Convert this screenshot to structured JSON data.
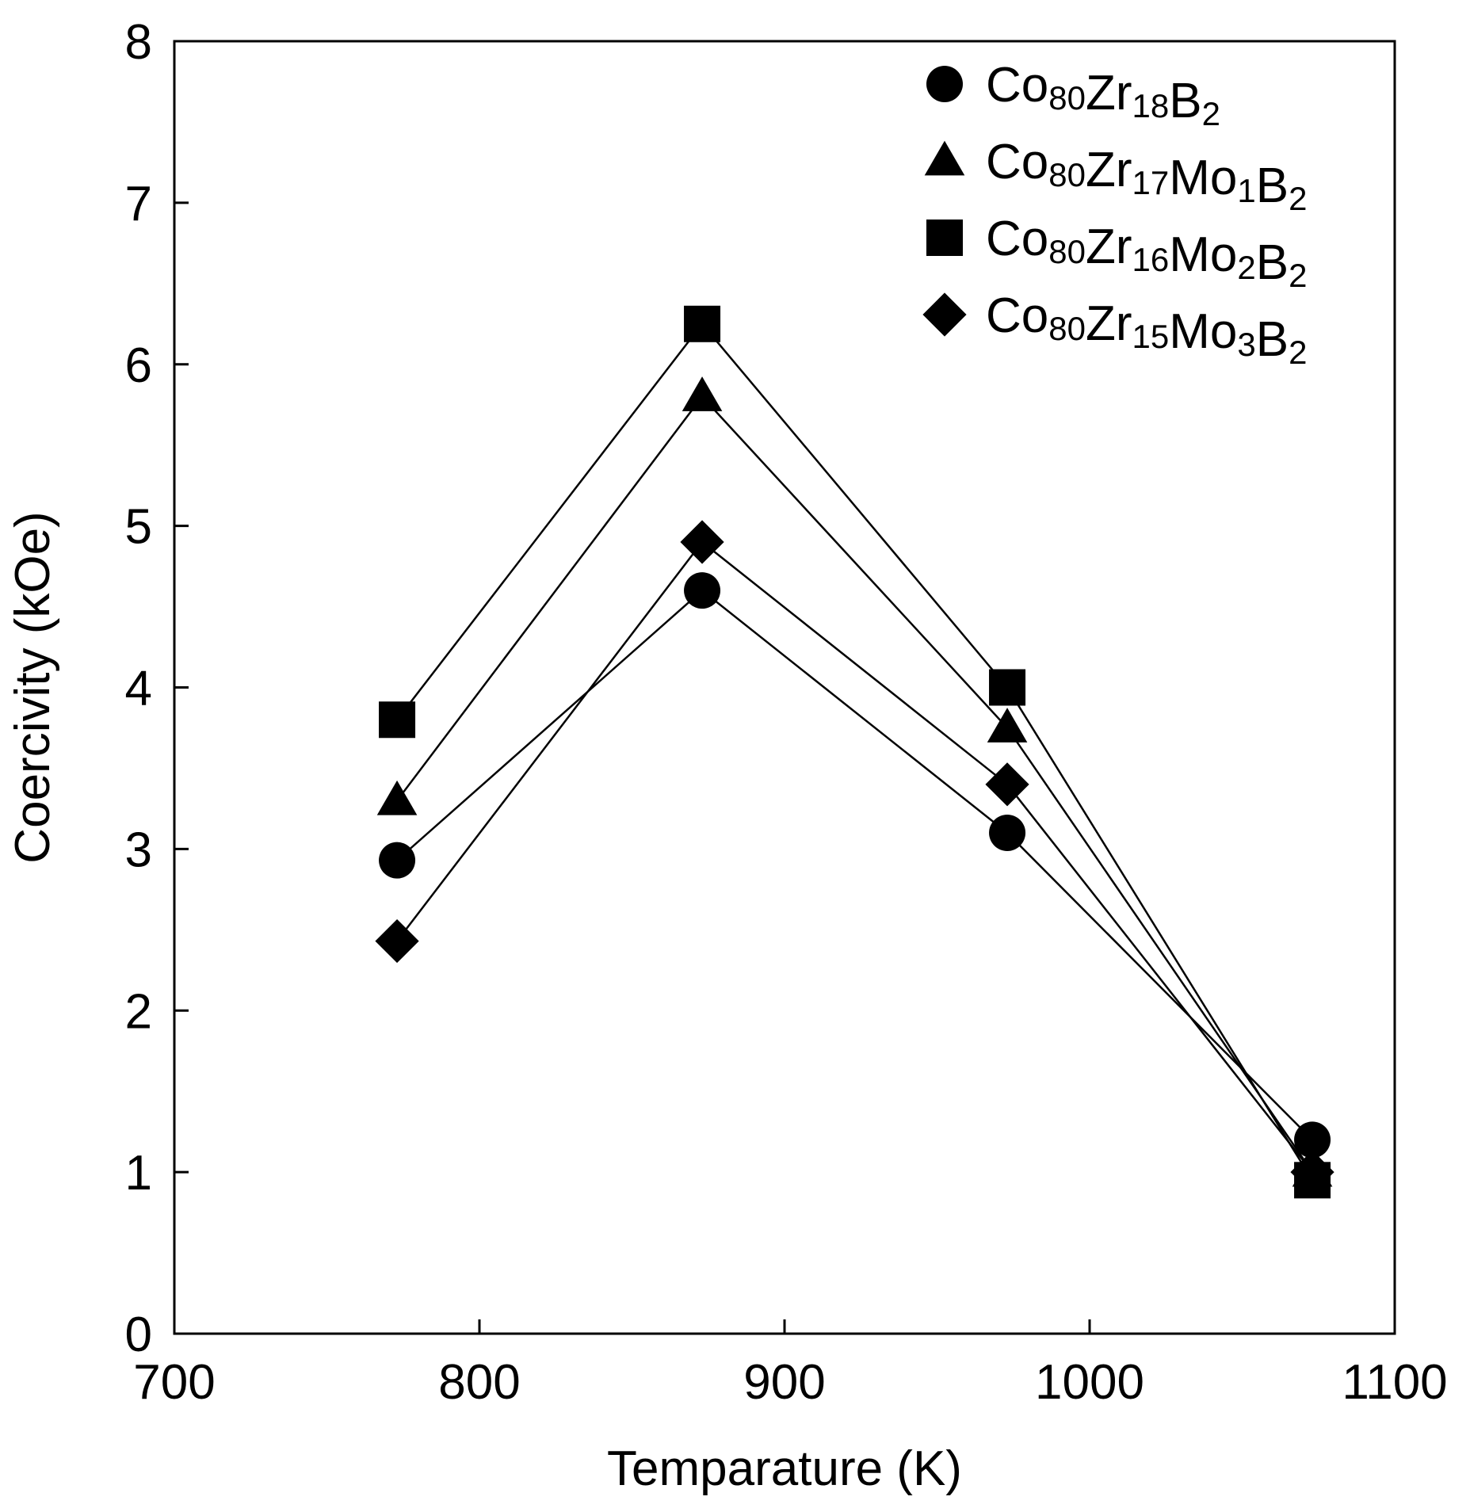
{
  "chart_data": {
    "type": "line",
    "title": "",
    "xlabel": "Temparature (K)",
    "ylabel": "Coercivity (kOe)",
    "xlim": [
      700,
      1100
    ],
    "ylim": [
      0,
      8
    ],
    "xticks": [
      700,
      800,
      900,
      1000,
      1100
    ],
    "yticks": [
      0,
      1,
      2,
      3,
      4,
      5,
      6,
      7,
      8
    ],
    "grid": false,
    "legend_position": "top-right",
    "x": [
      773,
      873,
      973,
      1073
    ],
    "series": [
      {
        "name": "Co80Zr18B2",
        "marker": "circle",
        "label_parts": [
          [
            "Co",
            ""
          ],
          [
            "80",
            "sub"
          ],
          [
            "Zr",
            ""
          ],
          [
            "18",
            "sub"
          ],
          [
            "B",
            ""
          ],
          [
            "2",
            "sub"
          ]
        ],
        "values": [
          2.93,
          4.6,
          3.1,
          1.2
        ]
      },
      {
        "name": "Co80Zr17Mo1B2",
        "marker": "triangle",
        "label_parts": [
          [
            "Co",
            ""
          ],
          [
            "80",
            "sub"
          ],
          [
            "Zr",
            ""
          ],
          [
            "17",
            "sub"
          ],
          [
            "Mo",
            ""
          ],
          [
            "1",
            "sub"
          ],
          [
            "B",
            ""
          ],
          [
            "2",
            "sub"
          ]
        ],
        "values": [
          3.3,
          5.8,
          3.75,
          1.0
        ]
      },
      {
        "name": "Co80Zr16Mo2B2",
        "marker": "square",
        "label_parts": [
          [
            "Co",
            ""
          ],
          [
            "80",
            "sub"
          ],
          [
            "Zr",
            ""
          ],
          [
            "16",
            "sub"
          ],
          [
            "Mo",
            ""
          ],
          [
            "2",
            "sub"
          ],
          [
            "B",
            ""
          ],
          [
            "2",
            "sub"
          ]
        ],
        "values": [
          3.8,
          6.25,
          4.0,
          0.95
        ]
      },
      {
        "name": "Co80Zr15Mo3B2",
        "marker": "diamond",
        "label_parts": [
          [
            "Co",
            ""
          ],
          [
            "80",
            "sub"
          ],
          [
            "Zr",
            ""
          ],
          [
            "15",
            "sub"
          ],
          [
            "Mo",
            ""
          ],
          [
            "3",
            "sub"
          ],
          [
            "B",
            ""
          ],
          [
            "2",
            "sub"
          ]
        ],
        "values": [
          2.43,
          4.9,
          3.4,
          1.0
        ]
      }
    ],
    "colors": {
      "line": "#000000",
      "marker": "#000000",
      "axis": "#000000"
    }
  }
}
